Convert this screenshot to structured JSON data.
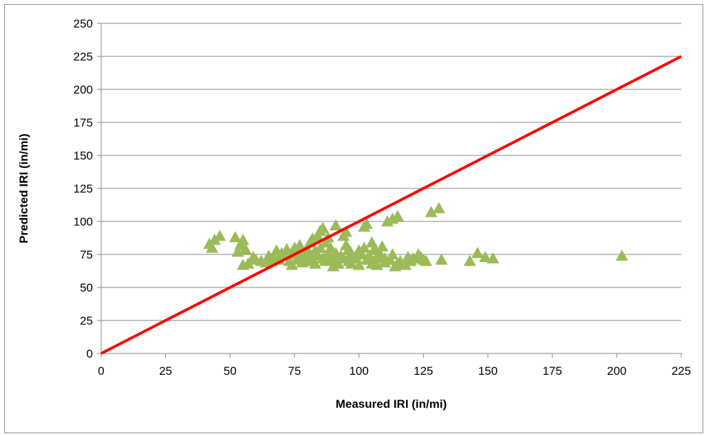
{
  "chart_data": {
    "type": "scatter",
    "title": "",
    "xlabel": "Measured IRI (in/mi)",
    "ylabel": "Predicted IRI (in/mi)",
    "xlim": [
      0,
      225
    ],
    "ylim": [
      0,
      250
    ],
    "x_ticks": [
      "0",
      "25",
      "50",
      "75",
      "100",
      "125",
      "150",
      "175",
      "200",
      "225"
    ],
    "y_ticks": [
      "0",
      "25",
      "50",
      "75",
      "100",
      "125",
      "150",
      "175",
      "200",
      "225",
      "250"
    ],
    "grid": "horizontal",
    "legend": "none",
    "colors": {
      "points": "#9bbb59",
      "equality_line": "#ff0000",
      "grid": "#868686"
    },
    "equality_line": {
      "x": [
        0,
        225
      ],
      "y": [
        0,
        225
      ]
    },
    "series": [
      {
        "marker": "triangle",
        "points": [
          [
            42,
            83
          ],
          [
            43,
            80
          ],
          [
            44,
            86
          ],
          [
            46,
            89
          ],
          [
            52,
            88
          ],
          [
            53,
            77
          ],
          [
            54,
            82
          ],
          [
            55,
            86
          ],
          [
            55,
            67
          ],
          [
            56,
            79
          ],
          [
            57,
            68
          ],
          [
            59,
            73
          ],
          [
            60,
            71
          ],
          [
            62,
            70
          ],
          [
            64,
            69
          ],
          [
            65,
            74
          ],
          [
            66,
            70
          ],
          [
            67,
            72
          ],
          [
            68,
            78
          ],
          [
            69,
            71
          ],
          [
            70,
            76
          ],
          [
            71,
            74
          ],
          [
            72,
            79
          ],
          [
            73,
            70
          ],
          [
            74,
            67
          ],
          [
            74,
            75
          ],
          [
            75,
            80
          ],
          [
            76,
            71
          ],
          [
            77,
            74
          ],
          [
            77,
            82
          ],
          [
            78,
            69
          ],
          [
            78,
            77
          ],
          [
            79,
            73
          ],
          [
            80,
            79
          ],
          [
            80,
            70
          ],
          [
            81,
            84
          ],
          [
            81,
            75
          ],
          [
            82,
            87
          ],
          [
            82,
            71
          ],
          [
            83,
            78
          ],
          [
            83,
            68
          ],
          [
            84,
            89
          ],
          [
            84,
            74
          ],
          [
            85,
            93
          ],
          [
            85,
            80
          ],
          [
            86,
            95
          ],
          [
            86,
            72
          ],
          [
            87,
            84
          ],
          [
            87,
            70
          ],
          [
            88,
            76
          ],
          [
            88,
            88
          ],
          [
            89,
            73
          ],
          [
            89,
            80
          ],
          [
            90,
            71
          ],
          [
            90,
            66
          ],
          [
            91,
            97
          ],
          [
            91,
            76
          ],
          [
            92,
            68
          ],
          [
            93,
            74
          ],
          [
            94,
            89
          ],
          [
            94,
            72
          ],
          [
            95,
            92
          ],
          [
            95,
            82
          ],
          [
            96,
            79
          ],
          [
            96,
            70
          ],
          [
            97,
            76
          ],
          [
            97,
            68
          ],
          [
            98,
            73
          ],
          [
            99,
            72
          ],
          [
            100,
            67
          ],
          [
            100,
            78
          ],
          [
            101,
            75
          ],
          [
            102,
            96
          ],
          [
            102,
            80
          ],
          [
            103,
            98
          ],
          [
            103,
            71
          ],
          [
            104,
            74
          ],
          [
            105,
            68
          ],
          [
            105,
            84
          ],
          [
            106,
            79
          ],
          [
            106,
            70
          ],
          [
            107,
            73
          ],
          [
            107,
            67
          ],
          [
            108,
            76
          ],
          [
            109,
            81
          ],
          [
            110,
            72
          ],
          [
            110,
            69
          ],
          [
            111,
            100
          ],
          [
            112,
            71
          ],
          [
            113,
            75
          ],
          [
            113,
            102
          ],
          [
            114,
            66
          ],
          [
            115,
            104
          ],
          [
            115,
            68
          ],
          [
            116,
            70
          ],
          [
            118,
            67
          ],
          [
            119,
            73
          ],
          [
            120,
            70
          ],
          [
            121,
            72
          ],
          [
            123,
            75
          ],
          [
            124,
            73
          ],
          [
            125,
            71
          ],
          [
            126,
            70
          ],
          [
            128,
            107
          ],
          [
            131,
            110
          ],
          [
            132,
            71
          ],
          [
            143,
            70
          ],
          [
            146,
            76
          ],
          [
            149,
            73
          ],
          [
            152,
            72
          ],
          [
            202,
            74
          ]
        ]
      }
    ]
  }
}
